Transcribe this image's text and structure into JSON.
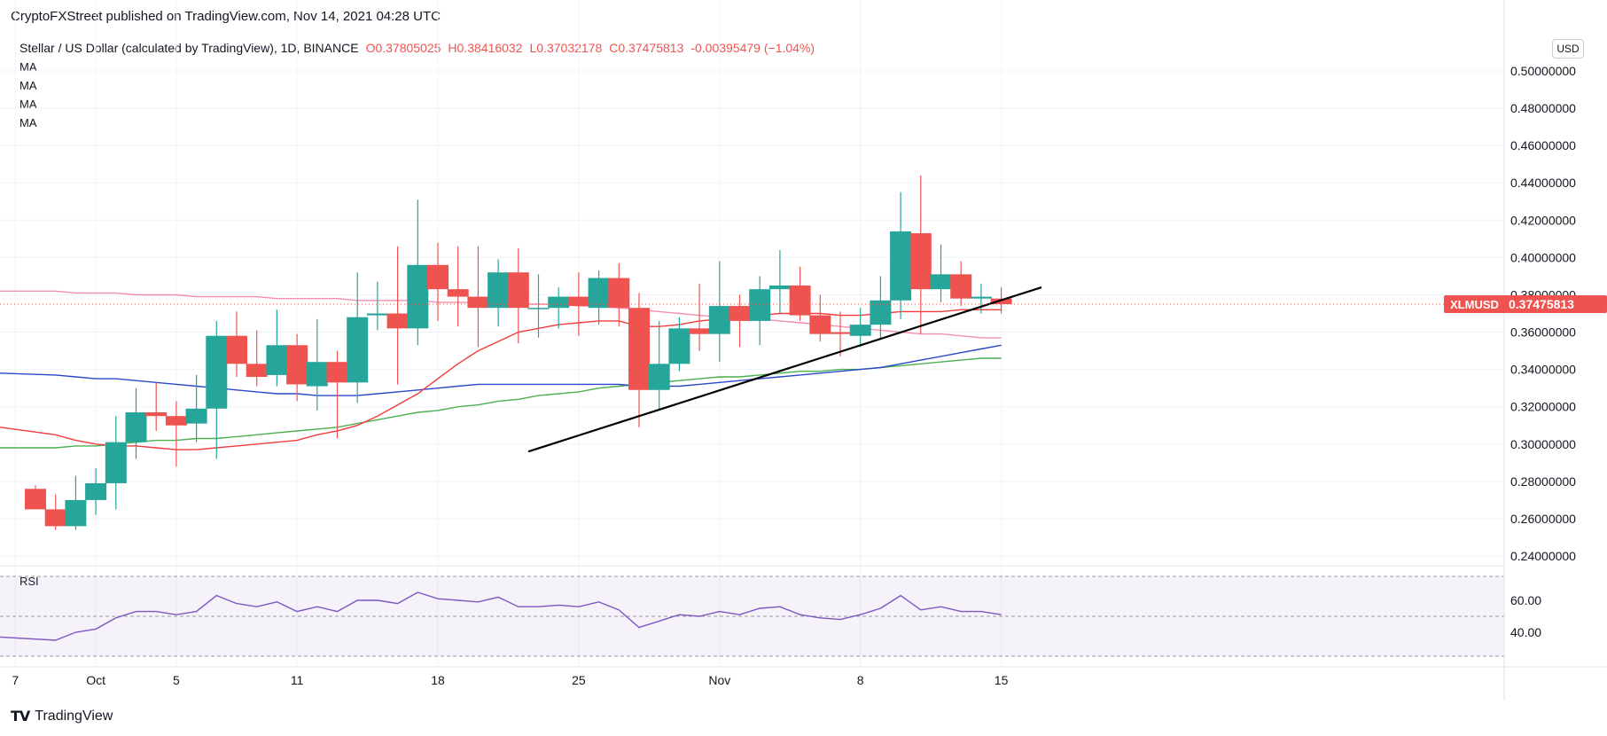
{
  "header": {
    "published": "CryptoFXStreet published on TradingView.com, Nov 14, 2021 04:28 UTC"
  },
  "legend": {
    "symbol": "Stellar / US Dollar (calculated by TradingView), 1D, BINANCE",
    "open": "O0.37805025",
    "high": "H0.38416032",
    "low": "L0.37032178",
    "close": "C0.37475813",
    "change": "-0.00395479 (−1.04%)",
    "ma_labels": [
      "MA",
      "MA",
      "MA",
      "MA"
    ]
  },
  "currency": "USD",
  "price_tag": {
    "symbol": "XLMUSD",
    "value": "0.37475813"
  },
  "rsi_label": "RSI",
  "footer": {
    "brand": "TradingView"
  },
  "colors": {
    "up": "#26a69a",
    "down": "#ef5350",
    "ma_fast": "#f23b3b",
    "ma_mid": "#2a49c9",
    "ma_slow": "#4caf50",
    "ma_long": "#f48fb1",
    "rsi": "#7e57c2",
    "trendline": "#000000"
  },
  "chart_data": {
    "type": "candlestick",
    "y_ticks": [
      "0.50000000",
      "0.48000000",
      "0.46000000",
      "0.44000000",
      "0.42000000",
      "0.40000000",
      "0.38000000",
      "0.36000000",
      "0.34000000",
      "0.32000000",
      "0.30000000",
      "0.28000000",
      "0.26000000",
      "0.24000000"
    ],
    "ylim": [
      0.24,
      0.5
    ],
    "x_ticks": [
      {
        "label": "7",
        "i": -1
      },
      {
        "label": "Oct",
        "i": 3
      },
      {
        "label": "5",
        "i": 7
      },
      {
        "label": "11",
        "i": 13
      },
      {
        "label": "18",
        "i": 20
      },
      {
        "label": "25",
        "i": 27
      },
      {
        "label": "Nov",
        "i": 34
      },
      {
        "label": "8",
        "i": 41
      },
      {
        "label": "15",
        "i": 48
      }
    ],
    "candles": [
      [
        0.276,
        0.278,
        0.266,
        0.265
      ],
      [
        0.265,
        0.273,
        0.254,
        0.256
      ],
      [
        0.256,
        0.283,
        0.254,
        0.27
      ],
      [
        0.27,
        0.287,
        0.262,
        0.279
      ],
      [
        0.279,
        0.315,
        0.265,
        0.301
      ],
      [
        0.301,
        0.33,
        0.292,
        0.317
      ],
      [
        0.317,
        0.333,
        0.307,
        0.315
      ],
      [
        0.315,
        0.323,
        0.288,
        0.31
      ],
      [
        0.311,
        0.337,
        0.301,
        0.319
      ],
      [
        0.319,
        0.366,
        0.292,
        0.358
      ],
      [
        0.358,
        0.371,
        0.336,
        0.343
      ],
      [
        0.343,
        0.361,
        0.331,
        0.336
      ],
      [
        0.337,
        0.372,
        0.331,
        0.353
      ],
      [
        0.353,
        0.359,
        0.323,
        0.332
      ],
      [
        0.331,
        0.367,
        0.318,
        0.344
      ],
      [
        0.344,
        0.35,
        0.303,
        0.333
      ],
      [
        0.333,
        0.392,
        0.322,
        0.368
      ],
      [
        0.369,
        0.387,
        0.361,
        0.37
      ],
      [
        0.37,
        0.406,
        0.332,
        0.362
      ],
      [
        0.362,
        0.431,
        0.353,
        0.396
      ],
      [
        0.396,
        0.408,
        0.366,
        0.383
      ],
      [
        0.383,
        0.406,
        0.363,
        0.379
      ],
      [
        0.379,
        0.406,
        0.352,
        0.373
      ],
      [
        0.373,
        0.399,
        0.363,
        0.392
      ],
      [
        0.392,
        0.405,
        0.354,
        0.373
      ],
      [
        0.373,
        0.391,
        0.357,
        0.373
      ],
      [
        0.373,
        0.384,
        0.362,
        0.379
      ],
      [
        0.379,
        0.392,
        0.358,
        0.374
      ],
      [
        0.373,
        0.393,
        0.364,
        0.389
      ],
      [
        0.389,
        0.397,
        0.363,
        0.373
      ],
      [
        0.373,
        0.381,
        0.309,
        0.329
      ],
      [
        0.329,
        0.366,
        0.318,
        0.343
      ],
      [
        0.343,
        0.368,
        0.339,
        0.362
      ],
      [
        0.362,
        0.386,
        0.35,
        0.359
      ],
      [
        0.359,
        0.398,
        0.344,
        0.374
      ],
      [
        0.374,
        0.38,
        0.352,
        0.366
      ],
      [
        0.366,
        0.39,
        0.353,
        0.383
      ],
      [
        0.383,
        0.404,
        0.37,
        0.385
      ],
      [
        0.385,
        0.395,
        0.366,
        0.369
      ],
      [
        0.369,
        0.38,
        0.355,
        0.359
      ],
      [
        0.36,
        0.371,
        0.347,
        0.359
      ],
      [
        0.358,
        0.373,
        0.352,
        0.364
      ],
      [
        0.364,
        0.39,
        0.356,
        0.377
      ],
      [
        0.377,
        0.435,
        0.367,
        0.414
      ],
      [
        0.413,
        0.444,
        0.359,
        0.383
      ],
      [
        0.383,
        0.407,
        0.376,
        0.391
      ],
      [
        0.391,
        0.398,
        0.374,
        0.378
      ],
      [
        0.378,
        0.386,
        0.37,
        0.379
      ],
      [
        0.378,
        0.384,
        0.37,
        0.375
      ]
    ],
    "ma_fast": [
      0.309,
      0.305,
      0.302,
      0.3,
      0.299,
      0.299,
      0.298,
      0.297,
      0.297,
      0.298,
      0.299,
      0.3,
      0.301,
      0.302,
      0.305,
      0.307,
      0.31,
      0.315,
      0.321,
      0.327,
      0.335,
      0.343,
      0.35,
      0.355,
      0.36,
      0.362,
      0.364,
      0.365,
      0.366,
      0.366,
      0.363,
      0.363,
      0.364,
      0.366,
      0.367,
      0.368,
      0.369,
      0.37,
      0.37,
      0.37,
      0.369,
      0.369,
      0.37,
      0.371,
      0.371,
      0.371,
      0.372,
      0.372,
      0.372
    ],
    "ma_mid": [
      0.338,
      0.337,
      0.336,
      0.335,
      0.335,
      0.334,
      0.333,
      0.332,
      0.331,
      0.33,
      0.329,
      0.328,
      0.327,
      0.327,
      0.326,
      0.326,
      0.326,
      0.327,
      0.328,
      0.329,
      0.33,
      0.331,
      0.332,
      0.332,
      0.332,
      0.332,
      0.332,
      0.332,
      0.332,
      0.332,
      0.331,
      0.331,
      0.331,
      0.332,
      0.333,
      0.334,
      0.335,
      0.336,
      0.337,
      0.338,
      0.339,
      0.34,
      0.341,
      0.343,
      0.345,
      0.347,
      0.349,
      0.351,
      0.353
    ],
    "ma_slow": [
      0.298,
      0.298,
      0.299,
      0.299,
      0.3,
      0.301,
      0.302,
      0.302,
      0.303,
      0.303,
      0.304,
      0.305,
      0.306,
      0.307,
      0.308,
      0.309,
      0.311,
      0.313,
      0.315,
      0.317,
      0.318,
      0.32,
      0.321,
      0.323,
      0.324,
      0.326,
      0.327,
      0.328,
      0.33,
      0.331,
      0.332,
      0.333,
      0.334,
      0.335,
      0.336,
      0.336,
      0.337,
      0.338,
      0.339,
      0.339,
      0.34,
      0.34,
      0.341,
      0.342,
      0.343,
      0.344,
      0.345,
      0.346,
      0.346
    ],
    "ma_long": [
      0.382,
      0.382,
      0.381,
      0.381,
      0.381,
      0.38,
      0.38,
      0.38,
      0.379,
      0.379,
      0.379,
      0.379,
      0.378,
      0.378,
      0.378,
      0.378,
      0.377,
      0.377,
      0.377,
      0.377,
      0.376,
      0.376,
      0.376,
      0.376,
      0.375,
      0.375,
      0.375,
      0.374,
      0.374,
      0.373,
      0.372,
      0.371,
      0.37,
      0.369,
      0.368,
      0.367,
      0.367,
      0.366,
      0.365,
      0.364,
      0.363,
      0.362,
      0.361,
      0.36,
      0.359,
      0.359,
      0.358,
      0.357,
      0.357
    ],
    "trendline": {
      "from": [
        24.5,
        0.296
      ],
      "to": [
        50,
        0.384
      ]
    },
    "rsi": {
      "ticks": [
        "60.00",
        "40.00"
      ],
      "ylim": [
        25,
        75
      ],
      "values": [
        37,
        35,
        40,
        42,
        49,
        53,
        53,
        51,
        53,
        63,
        58,
        56,
        59,
        53,
        56,
        53,
        60,
        60,
        58,
        65,
        61,
        60,
        59,
        62,
        56,
        56,
        57,
        56,
        59,
        54,
        43,
        47,
        51,
        50,
        53,
        51,
        55,
        56,
        51,
        49,
        48,
        51,
        55,
        63,
        54,
        56,
        53,
        53,
        51
      ]
    }
  }
}
